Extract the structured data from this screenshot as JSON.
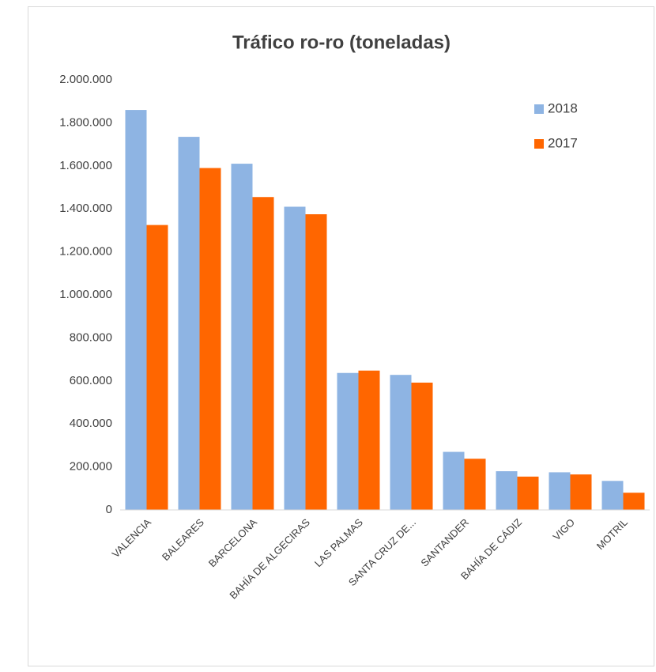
{
  "chart_data": {
    "type": "bar",
    "title": "Tráfico ro-ro (toneladas)",
    "categories": [
      "VALENCIA",
      "BALEARES",
      "BARCELONA",
      "BAHÍA DE ALGECIRAS",
      "LAS PALMAS",
      "SANTA CRUZ DE...",
      "SANTANDER",
      "BAHÍA DE CÁDIZ",
      "VIGO",
      "MOTRIL"
    ],
    "series": [
      {
        "name": "2018",
        "color": "#8eb4e3",
        "values": [
          1860000,
          1735000,
          1610000,
          1410000,
          637000,
          628000,
          270000,
          180000,
          175000,
          135000
        ]
      },
      {
        "name": "2017",
        "color": "#ff6600",
        "values": [
          1325000,
          1590000,
          1455000,
          1375000,
          648000,
          592000,
          238000,
          155000,
          165000,
          80000
        ]
      }
    ],
    "ylim": [
      0,
      2000000
    ],
    "yticks": [
      0,
      {
        "value": 200000,
        "label": "200.000"
      },
      {
        "value": 400000,
        "label": "400.000"
      },
      {
        "value": 600000,
        "label": "600.000"
      },
      {
        "value": 800000,
        "label": "800.000"
      },
      {
        "value": 1000000,
        "label": "1.000.000"
      },
      {
        "value": 1200000,
        "label": "1.200.000"
      },
      {
        "value": 1400000,
        "label": "1.400.000"
      },
      {
        "value": 1600000,
        "label": "1.600.000"
      },
      {
        "value": 1800000,
        "label": "1.800.000"
      },
      {
        "value": 2000000,
        "label": "2.000.000"
      }
    ],
    "grid": false,
    "legend": "top-right"
  }
}
